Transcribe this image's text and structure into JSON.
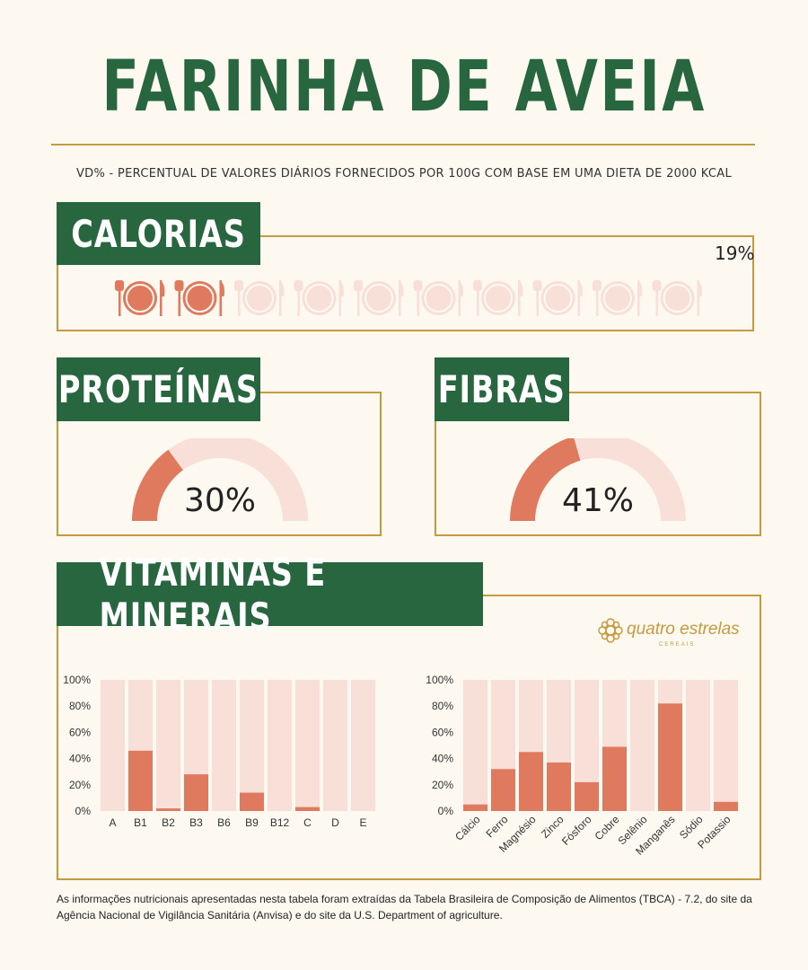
{
  "header": {
    "title": "FARINHA DE AVEIA",
    "subtitle": "VD% - PERCENTUAL DE VALORES DIÁRIOS FORNECIDOS POR 100G COM BASE EM UMA DIETA DE 2000 KCAL"
  },
  "sections": {
    "calorias": {
      "label": "CALORIAS",
      "value_text": "19%",
      "value": 19,
      "icons_total": 10,
      "icons_filled": 2
    },
    "proteinas": {
      "label": "PROTEÍNAS",
      "value_text": "30%",
      "value": 30
    },
    "fibras": {
      "label": "FIBRAS",
      "value_text": "41%",
      "value": 41
    },
    "vitaminas": {
      "label": "VITAMINAS E MINERAIS"
    }
  },
  "logo": {
    "text": "quatro estrelas",
    "sub": "CEREAIS"
  },
  "colors": {
    "green": "#27663e",
    "gold": "#c89a3e",
    "accent": "#e07a5f",
    "light": "#f8e0d9",
    "background": "#fdf9f1"
  },
  "chart_data": [
    {
      "type": "bar",
      "title": "",
      "categories": [
        "A",
        "B1",
        "B2",
        "B3",
        "B6",
        "B9",
        "B12",
        "C",
        "D",
        "E"
      ],
      "values": [
        0,
        46,
        2,
        28,
        0,
        14,
        0,
        3,
        0,
        0
      ],
      "y_tick_labels": [
        "100%",
        "80%",
        "60%",
        "40%",
        "20%",
        "0%"
      ],
      "ylim": [
        0,
        100
      ],
      "background_bars": true
    },
    {
      "type": "bar",
      "title": "",
      "categories": [
        "Cálcio",
        "Ferro",
        "Magnésio",
        "Zinco",
        "Fósforo",
        "Cobre",
        "Selênio",
        "Manganês",
        "Sódio",
        "Potassio"
      ],
      "values": [
        5,
        32,
        45,
        37,
        22,
        49,
        0,
        82,
        0,
        7
      ],
      "y_tick_labels": [
        "100%",
        "80%",
        "60%",
        "40%",
        "20%",
        "0%"
      ],
      "ylim": [
        0,
        100
      ],
      "background_bars": true
    }
  ],
  "footer": {
    "text": "As informações nutricionais apresentadas nesta tabela foram extraídas da Tabela Brasileira de Composição de Alimentos (TBCA) - 7.2, do site da Agência Nacional de Vigilância Sanitária (Anvisa) e do site da U.S. Department of agriculture."
  }
}
